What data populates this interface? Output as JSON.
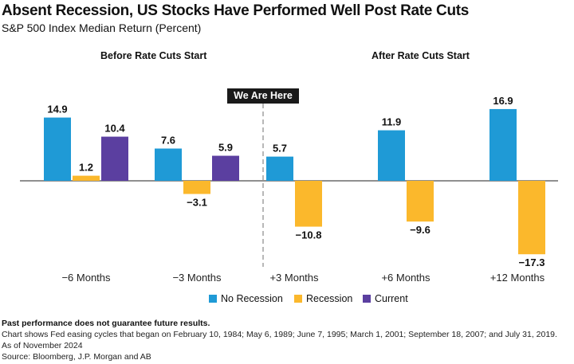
{
  "title": "Absent Recession, US Stocks Have Performed Well Post Rate Cuts",
  "subtitle": "S&P 500 Index Median Return (Percent)",
  "group_labels": {
    "before": "Before Rate Cuts Start",
    "after": "After Rate Cuts Start"
  },
  "marker_label": "We Are Here",
  "chart_data": {
    "type": "bar",
    "categories": [
      "−6 Months",
      "−3 Months",
      "+3 Months",
      "+6 Months",
      "+12 Months"
    ],
    "series": [
      {
        "name": "No Recession",
        "color": "#1f9ad6",
        "values": [
          14.9,
          7.6,
          5.7,
          11.9,
          16.9
        ]
      },
      {
        "name": "Recession",
        "color": "#fbb82c",
        "values": [
          1.2,
          -3.1,
          -10.8,
          -9.6,
          -17.3
        ]
      },
      {
        "name": "Current",
        "color": "#5b3fa0",
        "values": [
          10.4,
          5.9,
          null,
          null,
          null
        ]
      }
    ],
    "data_labels": true,
    "grid": false,
    "legend": "bottom"
  },
  "footnotes": {
    "disclaimer": "Past performance does not guarantee future results.",
    "note": "Chart shows Fed easing cycles that began on February 10, 1984; May 6, 1989; June 7, 1995; March 1, 2001; September 18, 2007; and July 31, 2019.",
    "as_of": "As of November 2024",
    "source": "Source: Bloomberg, J.P. Morgan and AB"
  }
}
